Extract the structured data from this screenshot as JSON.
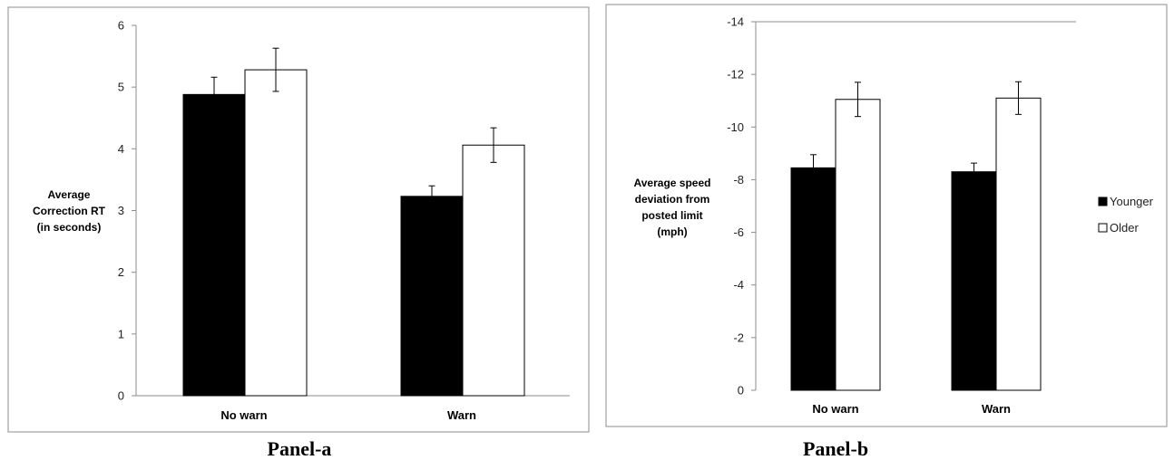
{
  "chart_data": [
    {
      "type": "bar",
      "caption": "Panel-a",
      "categories": [
        "No warn",
        "Warn"
      ],
      "ylabel": [
        "Average",
        "Correction RT",
        "(in seconds)"
      ],
      "ylim": [
        0,
        6
      ],
      "yticks": [
        0,
        1,
        2,
        3,
        4,
        5,
        6
      ],
      "series": [
        {
          "name": "Younger",
          "values": [
            4.88,
            3.23
          ],
          "error": [
            0.28,
            0.17
          ],
          "color": "#000000"
        },
        {
          "name": "Older",
          "values": [
            5.28,
            4.06
          ],
          "error": [
            0.35,
            0.28
          ],
          "color": "#ffffff"
        }
      ],
      "legend": "none",
      "grid": false
    },
    {
      "type": "bar",
      "caption": "Panel-b",
      "categories": [
        "No warn",
        "Warn"
      ],
      "ylabel": [
        "Average speed",
        "deviation from",
        "posted limit",
        "(mph)"
      ],
      "ylim": [
        -14,
        0
      ],
      "yticks": [
        0,
        -2,
        -4,
        -6,
        -8,
        -10,
        -12,
        -14
      ],
      "series": [
        {
          "name": "Younger",
          "values": [
            -8.45,
            -8.3
          ],
          "error": [
            0.5,
            0.33
          ],
          "color": "#000000"
        },
        {
          "name": "Older",
          "values": [
            -11.05,
            -11.1
          ],
          "error": [
            0.65,
            0.62
          ],
          "color": "#ffffff"
        }
      ],
      "legend": "right",
      "grid": false
    }
  ]
}
